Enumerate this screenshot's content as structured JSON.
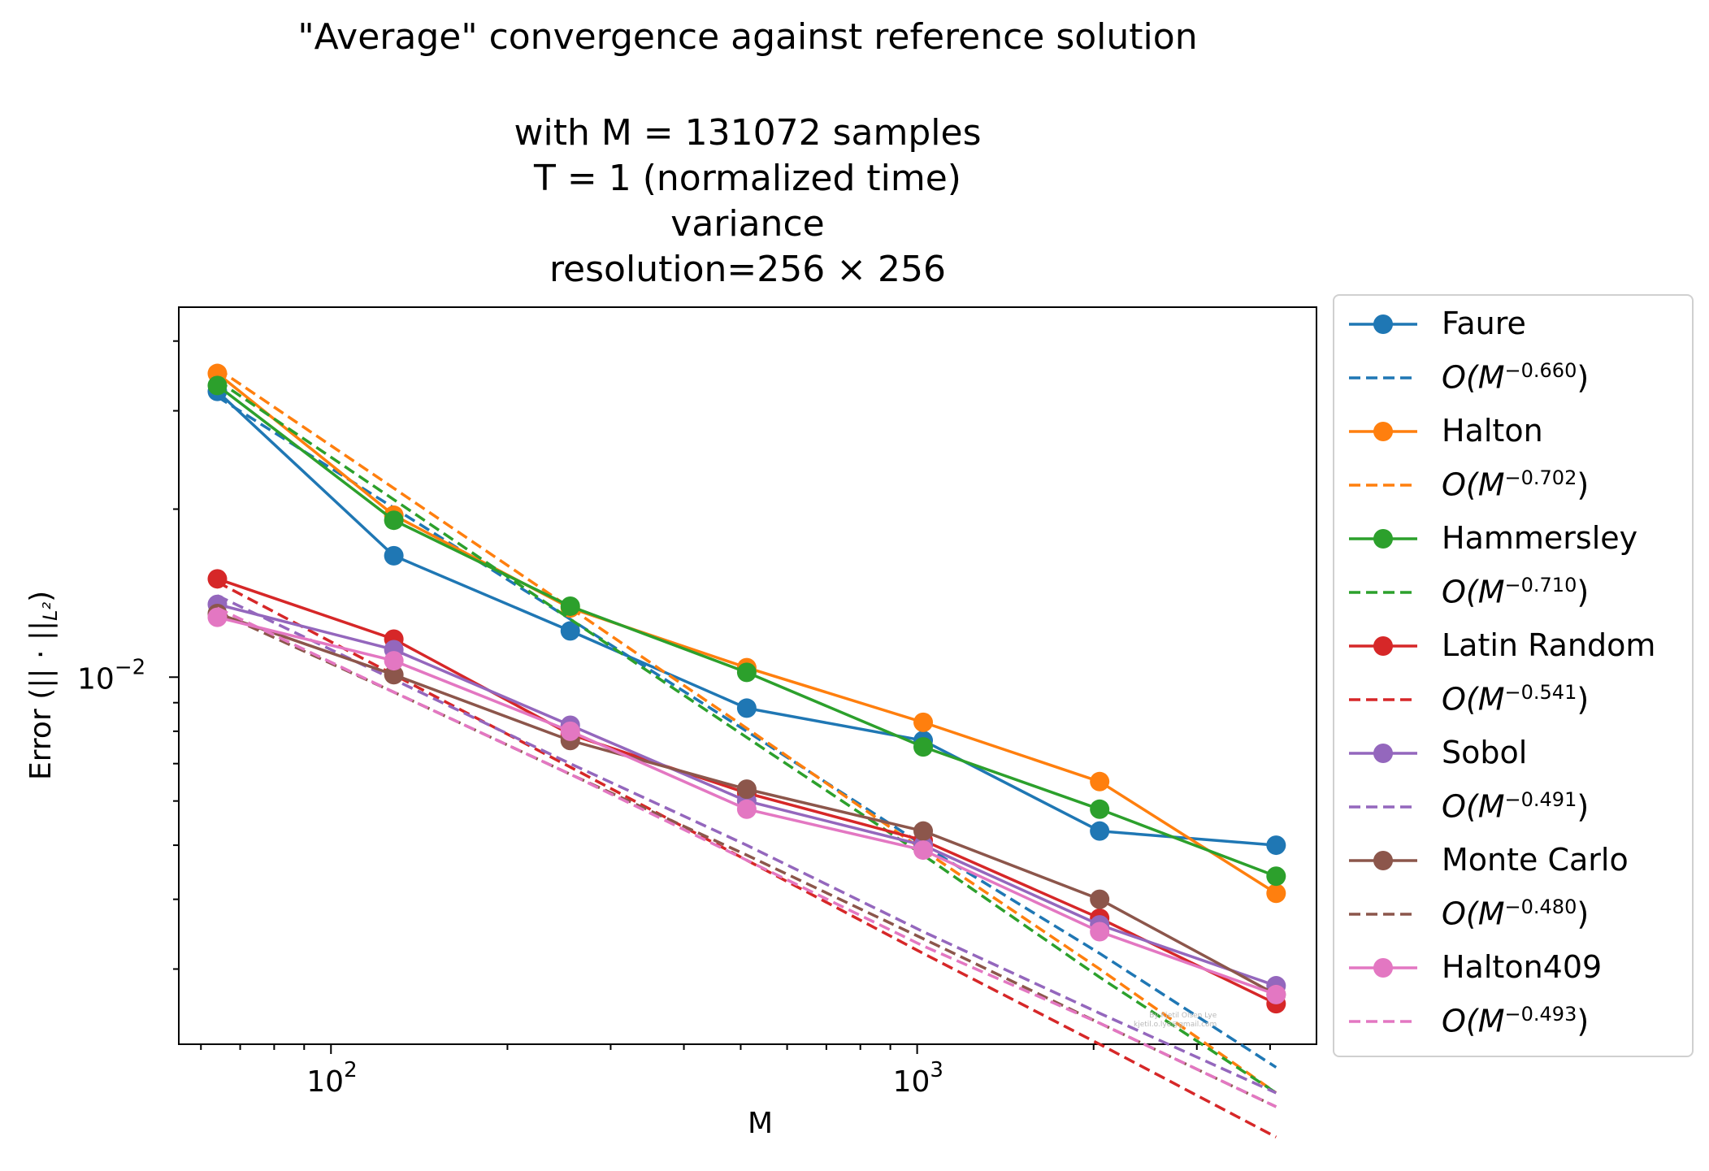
{
  "title_lines": [
    "\"Average\" convergence against reference solution",
    "with M = 131072 samples",
    "T = 1 (normalized time)",
    "variance",
    "resolution=256 × 256"
  ],
  "axis": {
    "xlabel": "M",
    "ylabel": "Error (|| · ||",
    "ylabel_sub": "L²",
    "ylabel_close": ")",
    "x_ticks": [
      {
        "base": "10",
        "exp": "2"
      },
      {
        "base": "10",
        "exp": "3"
      }
    ],
    "y_ticks": [
      {
        "base": "10",
        "exp": "−2"
      }
    ]
  },
  "watermark": [
    "By Kjetil Olsen Lye",
    "kjetil.o.lye@gmail.com"
  ],
  "chart_data": {
    "type": "line",
    "x_scale": "log",
    "y_scale": "log",
    "xlim": [
      55,
      4800
    ],
    "ylim": [
      0.0022,
      0.046
    ],
    "grid": false,
    "legend_placement": "outside right",
    "x": [
      64,
      128,
      256,
      512,
      1024,
      2048,
      4096
    ],
    "series": [
      {
        "name": "Faure",
        "color": "#1f77b4",
        "style": "solid-markers",
        "values": [
          0.0325,
          0.0165,
          0.0121,
          0.0088,
          0.0077,
          0.0053,
          0.005
        ]
      },
      {
        "name": "O(M^-0.660)",
        "label_pre": "O(M",
        "label_exp": "−0.660",
        "label_post": ")",
        "color": "#1f77b4",
        "style": "dashed",
        "rate": -0.66,
        "values": [
          0.0318,
          0.0201,
          0.0127,
          0.008,
          0.005,
          0.0032,
          0.002
        ]
      },
      {
        "name": "Halton",
        "color": "#ff7f0e",
        "style": "solid-markers",
        "values": [
          0.035,
          0.0195,
          0.0133,
          0.0104,
          0.0083,
          0.0065,
          0.0041
        ]
      },
      {
        "name": "O(M^-0.702)",
        "label_pre": "O(M",
        "label_exp": "−0.702",
        "label_post": ")",
        "color": "#ff7f0e",
        "style": "dashed",
        "rate": -0.702,
        "values": [
          0.0357,
          0.0218,
          0.0133,
          0.0081,
          0.0049,
          0.003,
          0.0018
        ]
      },
      {
        "name": "Hammersley",
        "color": "#2ca02c",
        "style": "solid-markers",
        "values": [
          0.0333,
          0.0191,
          0.0134,
          0.0102,
          0.0075,
          0.0058,
          0.0044
        ]
      },
      {
        "name": "O(M^-0.710)",
        "label_pre": "O(M",
        "label_exp": "−0.710",
        "label_post": ")",
        "color": "#2ca02c",
        "style": "dashed",
        "rate": -0.71,
        "values": [
          0.034,
          0.0208,
          0.0127,
          0.0078,
          0.0048,
          0.0029,
          0.0018
        ]
      },
      {
        "name": "Latin Random",
        "color": "#d62728",
        "style": "solid-markers",
        "values": [
          0.015,
          0.0117,
          0.0079,
          0.0062,
          0.0051,
          0.0037,
          0.0026
        ]
      },
      {
        "name": "O(M^-0.541)",
        "label_pre": "O(M",
        "label_exp": "−0.541",
        "label_post": ")",
        "color": "#d62728",
        "style": "dashed",
        "rate": -0.541,
        "values": [
          0.0148,
          0.0101,
          0.0069,
          0.0047,
          0.0032,
          0.0022,
          0.0015
        ]
      },
      {
        "name": "Sobol",
        "color": "#9467bd",
        "style": "solid-markers",
        "values": [
          0.0135,
          0.0112,
          0.0082,
          0.006,
          0.005,
          0.0036,
          0.0028
        ]
      },
      {
        "name": "O(M^-0.491)",
        "label_pre": "O(M",
        "label_exp": "−0.491",
        "label_post": ")",
        "color": "#9467bd",
        "style": "dashed",
        "rate": -0.491,
        "values": [
          0.014,
          0.0099,
          0.007,
          0.005,
          0.0035,
          0.0025,
          0.0018
        ]
      },
      {
        "name": "Monte Carlo",
        "color": "#8c564b",
        "style": "solid-markers",
        "values": [
          0.013,
          0.0101,
          0.0077,
          0.0063,
          0.0053,
          0.004,
          0.0027
        ]
      },
      {
        "name": "O(M^-0.480)",
        "label_pre": "O(M",
        "label_exp": "−0.480",
        "label_post": ")",
        "color": "#8c564b",
        "style": "dashed",
        "rate": -0.48,
        "values": [
          0.0131,
          0.0094,
          0.0067,
          0.0048,
          0.0034,
          0.0024,
          0.0017
        ]
      },
      {
        "name": "Halton409",
        "color": "#e377c2",
        "style": "solid-markers",
        "values": [
          0.0128,
          0.0107,
          0.008,
          0.0058,
          0.0049,
          0.0035,
          0.0027
        ]
      },
      {
        "name": "O(M^-0.493)",
        "label_pre": "O(M",
        "label_exp": "−0.493",
        "label_post": ")",
        "color": "#e377c2",
        "style": "dashed",
        "rate": -0.493,
        "values": [
          0.0133,
          0.0094,
          0.0067,
          0.0047,
          0.0033,
          0.0024,
          0.0017
        ]
      }
    ]
  }
}
